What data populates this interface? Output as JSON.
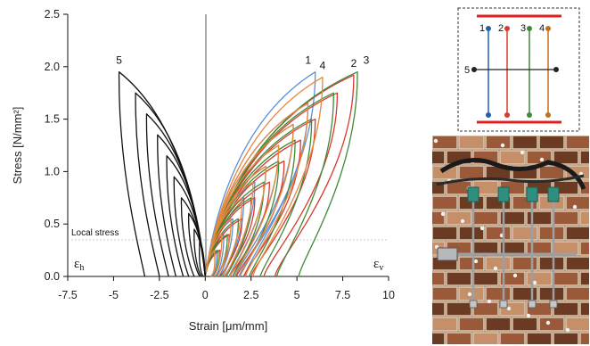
{
  "chart_data": {
    "type": "line",
    "xlabel": "Strain [μm/mm]",
    "ylabel": "Stress [N/mm²]",
    "xlim": [
      -7.5,
      10
    ],
    "ylim": [
      0,
      2.5
    ],
    "x_ticks": [
      "-7.5",
      "-5",
      "-2.5",
      "0",
      "2.5",
      "5",
      "7.5",
      "10"
    ],
    "y_ticks": [
      "0.0",
      "0.5",
      "1.0",
      "1.5",
      "2.0",
      "2.5"
    ],
    "annotations": {
      "local_stress": "Local stress",
      "eps_h": "ε",
      "eps_h_sub": "h",
      "eps_v": "ε",
      "eps_v_sub": "v"
    },
    "series": [
      {
        "name": "1",
        "color": "#5b8fd8",
        "peak": [
          6.0,
          1.95
        ],
        "cycles": [
          [
            0.6,
            0.25,
            0.35
          ],
          [
            1.0,
            0.4,
            0.55
          ],
          [
            1.5,
            0.55,
            0.75
          ],
          [
            2.1,
            0.75,
            0.95
          ],
          [
            2.7,
            0.9,
            1.1
          ],
          [
            3.3,
            1.05,
            1.3
          ],
          [
            4.0,
            1.25,
            1.5
          ],
          [
            4.8,
            1.45,
            1.65
          ],
          [
            5.6,
            1.65,
            1.85
          ],
          [
            6.0,
            1.95,
            2.15
          ]
        ]
      },
      {
        "name": "2",
        "color": "#d93a2b",
        "peak": [
          8.1,
          1.92
        ],
        "cycles": [
          [
            0.8,
            0.25,
            0.4
          ],
          [
            1.3,
            0.4,
            0.6
          ],
          [
            2.0,
            0.55,
            0.8
          ],
          [
            2.7,
            0.75,
            1.05
          ],
          [
            3.5,
            0.9,
            1.35
          ],
          [
            4.3,
            1.1,
            1.7
          ],
          [
            5.2,
            1.3,
            2.1
          ],
          [
            6.0,
            1.5,
            2.5
          ],
          [
            7.2,
            1.75,
            3.2
          ],
          [
            8.1,
            1.92,
            3.8
          ]
        ]
      },
      {
        "name": "3",
        "color": "#3f8a3a",
        "peak": [
          8.3,
          1.95
        ],
        "cycles": [
          [
            0.7,
            0.25,
            0.4
          ],
          [
            1.2,
            0.4,
            0.6
          ],
          [
            1.8,
            0.55,
            0.85
          ],
          [
            2.5,
            0.75,
            1.15
          ],
          [
            3.2,
            0.9,
            1.5
          ],
          [
            4.0,
            1.1,
            1.9
          ],
          [
            4.9,
            1.3,
            2.4
          ],
          [
            5.8,
            1.5,
            3.0
          ],
          [
            7.0,
            1.75,
            3.9
          ],
          [
            8.3,
            1.95,
            5.1
          ]
        ]
      },
      {
        "name": "4",
        "color": "#e8883a",
        "peak": [
          6.4,
          1.9
        ],
        "cycles": [
          [
            0.5,
            0.25,
            0.3
          ],
          [
            0.9,
            0.4,
            0.45
          ],
          [
            1.4,
            0.55,
            0.65
          ],
          [
            2.0,
            0.75,
            0.9
          ],
          [
            2.6,
            0.9,
            1.1
          ],
          [
            3.3,
            1.05,
            1.35
          ],
          [
            4.0,
            1.25,
            1.6
          ],
          [
            4.8,
            1.45,
            1.9
          ],
          [
            5.6,
            1.65,
            2.2
          ],
          [
            6.4,
            1.9,
            2.6
          ]
        ]
      },
      {
        "name": "5",
        "color": "#111111",
        "peak": [
          -4.7,
          1.95
        ],
        "cycles": [
          [
            -0.3,
            0.35,
            -0.1
          ],
          [
            -0.6,
            0.45,
            -0.2
          ],
          [
            -0.9,
            0.6,
            -0.3
          ],
          [
            -1.3,
            0.75,
            -0.6
          ],
          [
            -1.7,
            0.95,
            -0.9
          ],
          [
            -2.1,
            1.15,
            -1.2
          ],
          [
            -2.6,
            1.35,
            -1.6
          ],
          [
            -3.2,
            1.55,
            -2.0
          ],
          [
            -3.8,
            1.75,
            -2.5
          ],
          [
            -4.7,
            1.95,
            -3.3
          ]
        ]
      }
    ]
  },
  "schematic": {
    "labels": [
      "1",
      "2",
      "3",
      "4",
      "5"
    ],
    "colors": [
      "#1f5fb0",
      "#d93a2b",
      "#3f8a3a",
      "#c0701f",
      "#222222"
    ],
    "bar_color": "#e02020"
  },
  "photo": {
    "colors": {
      "brick_dark": "#6b3a22",
      "brick_mid": "#9a5a3a",
      "brick_light": "#c58f6a",
      "mortar": "#d9c9b3",
      "sensor": "#2f8f7f",
      "rod": "#9aa0a6"
    }
  }
}
